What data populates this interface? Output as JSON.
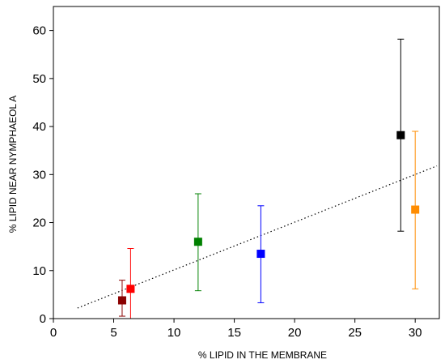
{
  "chart_data": {
    "type": "scatter",
    "xlabel": "%  LIPID IN THE MEMBRANE",
    "ylabel": "%  LIPID NEAR NYMPHAEOL A",
    "xlim": [
      0,
      32
    ],
    "ylim": [
      0,
      65
    ],
    "x_ticks": [
      "0",
      "5",
      "10",
      "15",
      "20",
      "25",
      "30"
    ],
    "y_ticks": [
      "0",
      "10",
      "20",
      "30",
      "40",
      "50",
      "60"
    ],
    "grid": false,
    "points": [
      {
        "x": 5.7,
        "y": 3.8,
        "err_low": 0.5,
        "err_high": 8.0,
        "color": "#8b0000"
      },
      {
        "x": 6.4,
        "y": 6.2,
        "err_low": 0.0,
        "err_high": 14.6,
        "color": "#ff0000"
      },
      {
        "x": 12.0,
        "y": 16.0,
        "err_low": 5.8,
        "err_high": 26.0,
        "color": "#008000"
      },
      {
        "x": 17.2,
        "y": 13.5,
        "err_low": 3.3,
        "err_high": 23.5,
        "color": "#0000ff"
      },
      {
        "x": 28.8,
        "y": 38.2,
        "err_low": 18.2,
        "err_high": 58.2,
        "color": "#000000"
      },
      {
        "x": 30.0,
        "y": 22.7,
        "err_low": 6.2,
        "err_high": 39.0,
        "color": "#ff8c00"
      }
    ],
    "fit_line": {
      "x": [
        2.0,
        31.8
      ],
      "y": [
        2.2,
        31.8
      ],
      "style": "dotted"
    }
  }
}
